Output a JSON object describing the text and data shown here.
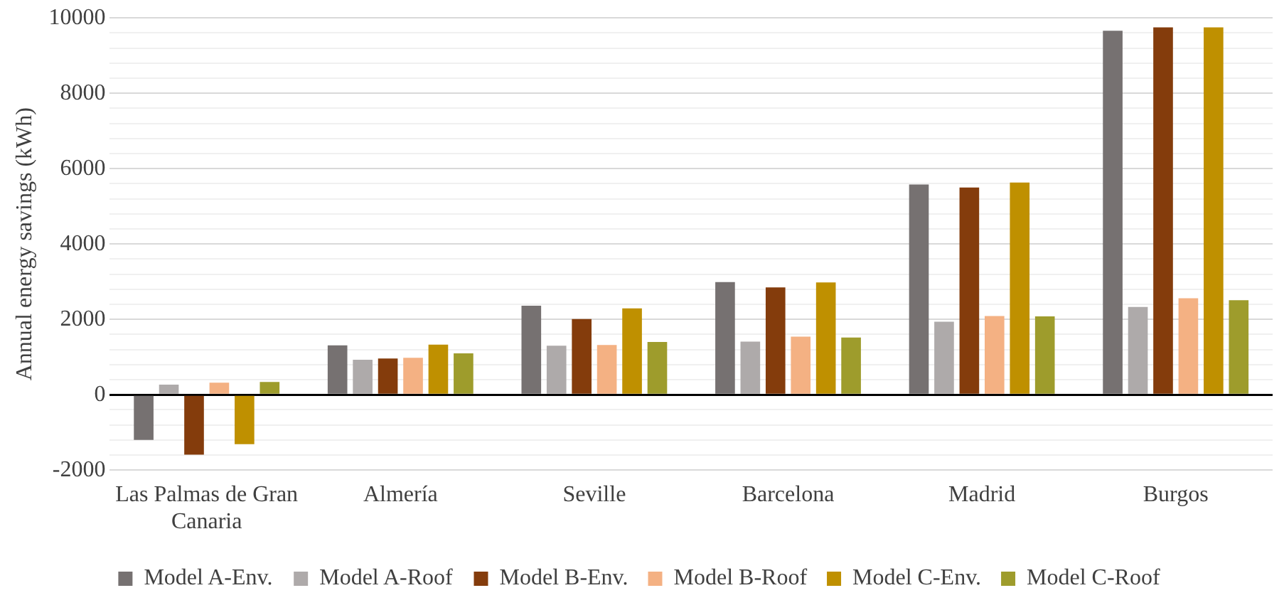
{
  "chart_data": {
    "type": "bar",
    "ylabel": "Annual energy savings (kWh)",
    "categories": [
      "Las Palmas de Gran Canaria",
      "Almería",
      "Seville",
      "Barcelona",
      "Madrid",
      "Burgos"
    ],
    "series": [
      {
        "name": "Model A-Env.",
        "color": "#767171",
        "values": [
          -1200,
          1310,
          2360,
          2990,
          5580,
          9660
        ]
      },
      {
        "name": "Model A-Roof",
        "color": "#aeaaaa",
        "values": [
          270,
          930,
          1300,
          1410,
          1940,
          2330
        ]
      },
      {
        "name": "Model B-Env.",
        "color": "#843c0c",
        "values": [
          -1590,
          960,
          2010,
          2850,
          5500,
          9750
        ]
      },
      {
        "name": "Model B-Roof",
        "color": "#f4b183",
        "values": [
          320,
          980,
          1320,
          1540,
          2090,
          2560
        ]
      },
      {
        "name": "Model C-Env.",
        "color": "#bf9000",
        "values": [
          -1310,
          1330,
          2290,
          2980,
          5630,
          9750
        ]
      },
      {
        "name": "Model C-Roof",
        "color": "#9e9c2c",
        "values": [
          340,
          1100,
          1400,
          1520,
          2080,
          2510
        ]
      }
    ],
    "ylim": [
      -2000,
      10000
    ],
    "yticks": [
      -2000,
      {
        "value": -1600,
        "label": null
      },
      {
        "value": -1200,
        "label": null
      },
      {
        "value": -800,
        "label": null
      },
      {
        "value": -400,
        "label": null
      },
      0,
      {
        "value": 400,
        "label": null
      },
      {
        "value": 800,
        "label": null
      },
      {
        "value": 1200,
        "label": null
      },
      {
        "value": 1600,
        "label": null
      },
      2000,
      {
        "value": 2400,
        "label": null
      },
      {
        "value": 2800,
        "label": null
      },
      {
        "value": 3200,
        "label": null
      },
      {
        "value": 3600,
        "label": null
      },
      4000,
      {
        "value": 4400,
        "label": null
      },
      {
        "value": 4800,
        "label": null
      },
      {
        "value": 5200,
        "label": null
      },
      {
        "value": 5600,
        "label": null
      },
      6000,
      {
        "value": 6400,
        "label": null
      },
      {
        "value": 6800,
        "label": null
      },
      {
        "value": 7200,
        "label": null
      },
      {
        "value": 7600,
        "label": null
      },
      8000,
      {
        "value": 8400,
        "label": null
      },
      {
        "value": 8800,
        "label": null
      },
      {
        "value": 9200,
        "label": null
      },
      {
        "value": 9600,
        "label": null
      },
      10000
    ],
    "grid": "y",
    "legend": "bottom"
  }
}
